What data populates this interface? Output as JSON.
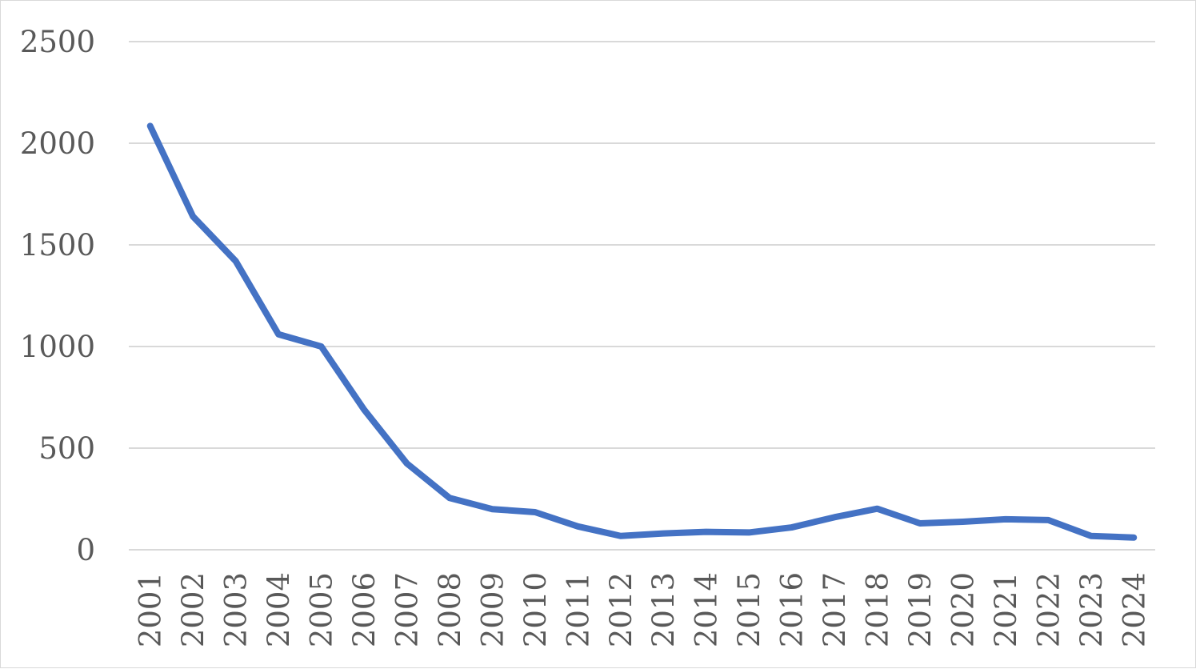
{
  "chart_data": {
    "type": "line",
    "title": "",
    "xlabel": "",
    "ylabel": "",
    "categories": [
      "2001",
      "2002",
      "2003",
      "2004",
      "2005",
      "2006",
      "2007",
      "2008",
      "2009",
      "2010",
      "2011",
      "2012",
      "2013",
      "2014",
      "2015",
      "2016",
      "2017",
      "2018",
      "2019",
      "2020",
      "2021",
      "2022",
      "2023",
      "2024"
    ],
    "series": [
      {
        "color": "#4472c4",
        "values": [
          2085,
          1640,
          1420,
          1060,
          1000,
          690,
          425,
          255,
          200,
          185,
          115,
          68,
          80,
          88,
          85,
          110,
          160,
          202,
          130,
          138,
          150,
          146,
          68,
          60
        ]
      }
    ],
    "ylim": [
      0,
      2500
    ],
    "yticks": [
      "0",
      "500",
      "1000",
      "1500",
      "2000",
      "2500"
    ],
    "grid": true,
    "legend": "none"
  }
}
